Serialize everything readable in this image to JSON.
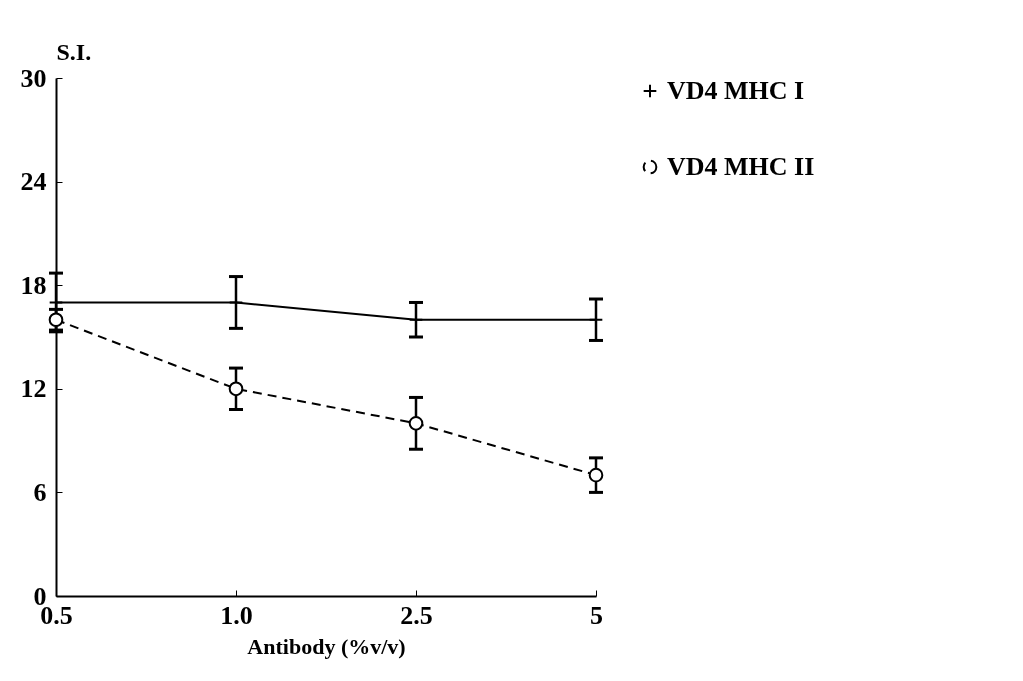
{
  "chart_data": {
    "type": "line",
    "xlabel": "Antibody (%v/v)",
    "ylabel": "S.I.",
    "categories": [
      "0.5",
      "1.0",
      "2.5",
      "5"
    ],
    "ylim": [
      0,
      30
    ],
    "yticks": [
      0,
      6,
      12,
      18,
      24,
      30
    ],
    "grid": false,
    "legend": "right",
    "series": [
      {
        "name": "VD4 MHC I",
        "color": "#000000",
        "marker": "cross",
        "line_style": "solid",
        "values": [
          17,
          17,
          16,
          16
        ],
        "errors": [
          1.7,
          1.5,
          1,
          1.2
        ]
      },
      {
        "name": "VD4 MHC II",
        "color": "#000000",
        "marker": "circle",
        "line_style": "dashed",
        "values": [
          16,
          12,
          10,
          7
        ],
        "errors": [
          0.6,
          1.2,
          1.5,
          1
        ]
      }
    ]
  }
}
